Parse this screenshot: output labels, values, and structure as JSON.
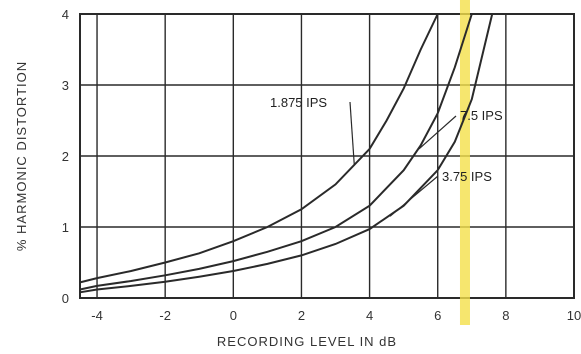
{
  "chart_data": {
    "type": "line",
    "title": "",
    "xlabel": "RECORDING LEVEL IN dB",
    "ylabel": "% HARMONIC DISTORTION",
    "xlim": [
      -4.5,
      10
    ],
    "ylim": [
      0,
      4
    ],
    "xticks": [
      -4,
      -2,
      0,
      2,
      4,
      6,
      8,
      10
    ],
    "yticks": [
      0,
      1,
      2,
      3,
      4
    ],
    "grid": true,
    "highlight_x": 6.8,
    "colors": {
      "line": "#2a2a2a",
      "grid": "#2a2a2a",
      "highlight": "#f4e04a"
    },
    "series": [
      {
        "name": "1.875 IPS",
        "x": [
          -4.5,
          -4,
          -3,
          -2,
          -1,
          0,
          1,
          2,
          3,
          4,
          4.5,
          5,
          5.5,
          6
        ],
        "y": [
          0.22,
          0.28,
          0.38,
          0.5,
          0.63,
          0.8,
          1.0,
          1.25,
          1.6,
          2.1,
          2.5,
          2.95,
          3.5,
          4.0
        ]
      },
      {
        "name": "7.5 IPS",
        "x": [
          -4.5,
          -4,
          -3,
          -2,
          -1,
          0,
          1,
          2,
          3,
          4,
          5,
          5.5,
          6,
          6.5,
          7
        ],
        "y": [
          0.12,
          0.17,
          0.24,
          0.32,
          0.41,
          0.52,
          0.65,
          0.8,
          1.0,
          1.3,
          1.8,
          2.15,
          2.6,
          3.25,
          4.0
        ]
      },
      {
        "name": "3.75 IPS",
        "x": [
          -4.5,
          -4,
          -3,
          -2,
          -1,
          0,
          1,
          2,
          3,
          4,
          5,
          6,
          6.5,
          7,
          7.6
        ],
        "y": [
          0.08,
          0.12,
          0.17,
          0.23,
          0.3,
          0.38,
          0.48,
          0.6,
          0.76,
          0.97,
          1.3,
          1.8,
          2.2,
          2.8,
          4.0
        ]
      }
    ],
    "annotations": [
      {
        "text": "1.875 IPS",
        "series": 0
      },
      {
        "text": "7.5 IPS",
        "series": 1
      },
      {
        "text": "3.75 IPS",
        "series": 2
      }
    ]
  }
}
